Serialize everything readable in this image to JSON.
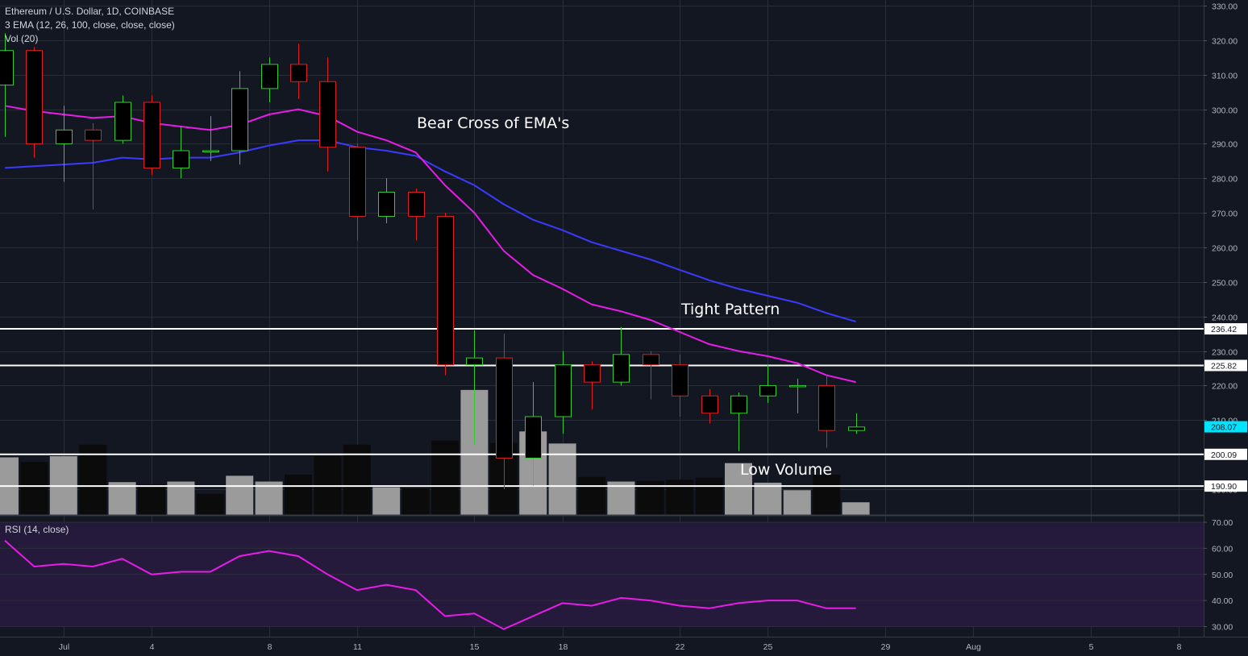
{
  "legend": {
    "title": "Ethereum / U.S. Dollar, 1D, COINBASE",
    "ema": "3 EMA (12, 26, 100, close, close, close)",
    "vol": "Vol (20)",
    "rsi": "RSI (14, close)"
  },
  "annotations": {
    "bear_cross": "Bear Cross of EMA's",
    "tight_pattern": "Tight Pattern",
    "low_volume": "Low Volume"
  },
  "colors": {
    "background": "#131722",
    "grid": "#2a2e39",
    "up": "#33cc33",
    "down": "#e02020",
    "body": "#000000",
    "ema_fast": "#e81ce8",
    "ema_slow": "#3b3bff",
    "volume": "#9b9b9b",
    "volume_dark": "#0b0b0b",
    "rsi_line": "#e81ce8",
    "rsi_band": "#261a3c",
    "rsi_upper": "#c01010",
    "rsi_lower": "#1ed01e",
    "level_line": "#ffffff",
    "price_label": "#00e5ff"
  },
  "chart_data": {
    "type": "candlestick",
    "symbol": "Ethereum / U.S. Dollar, 1D, COINBASE",
    "y_ticks": [
      "330.00",
      "320.00",
      "310.00",
      "300.00",
      "290.00",
      "280.00",
      "270.00",
      "260.00",
      "250.00",
      "240.00",
      "230.00",
      "220.00",
      "210.00",
      "200.00",
      "190.00"
    ],
    "ylim": [
      185,
      332
    ],
    "x_labels": [
      "Jul",
      "4",
      "8",
      "11",
      "15",
      "18",
      "22",
      "25",
      "29",
      "Aug",
      "5",
      "8"
    ],
    "candles": [
      {
        "date": "Jun 29",
        "open": 307,
        "high": 322,
        "low": 292,
        "close": 317
      },
      {
        "date": "Jun 30",
        "open": 317,
        "high": 318,
        "low": 286,
        "close": 290
      },
      {
        "date": "Jul 1",
        "open": 290,
        "high": 301,
        "low": 279,
        "close": 294
      },
      {
        "date": "Jul 2",
        "open": 294,
        "high": 296,
        "low": 271,
        "close": 291
      },
      {
        "date": "Jul 3",
        "open": 291,
        "high": 304,
        "low": 290,
        "close": 302
      },
      {
        "date": "Jul 4",
        "open": 302,
        "high": 304,
        "low": 281,
        "close": 283
      },
      {
        "date": "Jul 5",
        "open": 283,
        "high": 295,
        "low": 280,
        "close": 288
      },
      {
        "date": "Jul 6",
        "open": 288,
        "high": 298,
        "low": 285,
        "close": 288
      },
      {
        "date": "Jul 7",
        "open": 288,
        "high": 311,
        "low": 284,
        "close": 306
      },
      {
        "date": "Jul 8",
        "open": 306,
        "high": 315,
        "low": 302,
        "close": 313
      },
      {
        "date": "Jul 9",
        "open": 313,
        "high": 319,
        "low": 303,
        "close": 308
      },
      {
        "date": "Jul 10",
        "open": 308,
        "high": 315,
        "low": 282,
        "close": 289
      },
      {
        "date": "Jul 11",
        "open": 289,
        "high": 290,
        "low": 262,
        "close": 269
      },
      {
        "date": "Jul 12",
        "open": 269,
        "high": 280,
        "low": 267,
        "close": 276
      },
      {
        "date": "Jul 13",
        "open": 276,
        "high": 277,
        "low": 262,
        "close": 269
      },
      {
        "date": "Jul 14",
        "open": 269,
        "high": 270,
        "low": 223,
        "close": 226
      },
      {
        "date": "Jul 15",
        "open": 226,
        "high": 236,
        "low": 203,
        "close": 228
      },
      {
        "date": "Jul 16",
        "open": 228,
        "high": 235,
        "low": 190,
        "close": 199
      },
      {
        "date": "Jul 17",
        "open": 199,
        "high": 221,
        "low": 191,
        "close": 211
      },
      {
        "date": "Jul 18",
        "open": 211,
        "high": 230,
        "low": 206,
        "close": 226
      },
      {
        "date": "Jul 19",
        "open": 226,
        "high": 227,
        "low": 213,
        "close": 221
      },
      {
        "date": "Jul 20",
        "open": 221,
        "high": 237,
        "low": 220,
        "close": 229
      },
      {
        "date": "Jul 21",
        "open": 229,
        "high": 230,
        "low": 216,
        "close": 226
      },
      {
        "date": "Jul 22",
        "open": 226,
        "high": 229,
        "low": 211,
        "close": 217
      },
      {
        "date": "Jul 23",
        "open": 217,
        "high": 219,
        "low": 209,
        "close": 212
      },
      {
        "date": "Jul 24",
        "open": 212,
        "high": 218,
        "low": 201,
        "close": 217
      },
      {
        "date": "Jul 25",
        "open": 217,
        "high": 226,
        "low": 215,
        "close": 220
      },
      {
        "date": "Jul 26",
        "open": 220,
        "high": 222,
        "low": 212,
        "close": 220
      },
      {
        "date": "Jul 27",
        "open": 220,
        "high": 223,
        "low": 202,
        "close": 207
      },
      {
        "date": "Jul 28",
        "open": 207,
        "high": 212,
        "low": 206,
        "close": 208
      }
    ],
    "volume": [
      {
        "v": 100,
        "up": true
      },
      {
        "v": 92,
        "up": false
      },
      {
        "v": 102,
        "up": true
      },
      {
        "v": 122,
        "up": false
      },
      {
        "v": 57,
        "up": true
      },
      {
        "v": 53,
        "up": false
      },
      {
        "v": 58,
        "up": true
      },
      {
        "v": 37,
        "up": false
      },
      {
        "v": 68,
        "up": true
      },
      {
        "v": 58,
        "up": true
      },
      {
        "v": 70,
        "up": false
      },
      {
        "v": 102,
        "up": false
      },
      {
        "v": 122,
        "up": false
      },
      {
        "v": 48,
        "up": true
      },
      {
        "v": 46,
        "up": false
      },
      {
        "v": 129,
        "up": false
      },
      {
        "v": 217,
        "up": true
      },
      {
        "v": 125,
        "up": false
      },
      {
        "v": 145,
        "up": true
      },
      {
        "v": 124,
        "up": true
      },
      {
        "v": 66,
        "up": false
      },
      {
        "v": 58,
        "up": true
      },
      {
        "v": 59,
        "up": false
      },
      {
        "v": 61,
        "up": false
      },
      {
        "v": 65,
        "up": false
      },
      {
        "v": 90,
        "up": true
      },
      {
        "v": 56,
        "up": true
      },
      {
        "v": 43,
        "up": true
      },
      {
        "v": 70,
        "up": false
      },
      {
        "v": 22,
        "up": true
      }
    ],
    "ema_fast": [
      301,
      299.5,
      298.5,
      297.5,
      298,
      296,
      295,
      294,
      295.5,
      298.5,
      300,
      298,
      293.5,
      291,
      287.5,
      278,
      270,
      259,
      252,
      248,
      243.5,
      241.5,
      239,
      235.5,
      232,
      230,
      228.5,
      226.5,
      223,
      221
    ],
    "ema_slow": [
      283,
      283.5,
      284,
      284.5,
      286,
      285.5,
      286,
      286,
      287.5,
      289.5,
      291,
      291,
      289,
      288,
      286.5,
      282,
      278,
      272.5,
      268,
      265,
      261.5,
      259,
      256.5,
      253.5,
      250.5,
      248,
      246,
      244,
      241,
      238.5
    ],
    "levels": [
      {
        "value": 236.42,
        "label": "236.42"
      },
      {
        "value": 225.82,
        "label": "225.82"
      },
      {
        "value": 200.09,
        "label": "200.09"
      },
      {
        "value": 190.9,
        "label": "190.90"
      }
    ],
    "last_price": {
      "value": 208.07,
      "label": "208.07"
    },
    "rsi": {
      "values": [
        63,
        53,
        54,
        53,
        56,
        50,
        51,
        51,
        57,
        59,
        57,
        50,
        44,
        46,
        44,
        34,
        35,
        29,
        34,
        39,
        38,
        41,
        40,
        38,
        37,
        39,
        40,
        40,
        37,
        37
      ],
      "ylim": [
        28,
        72
      ],
      "y_ticks": [
        "70.00",
        "60.00",
        "50.00",
        "40.00",
        "30.00"
      ],
      "upper": 70,
      "lower": 30
    }
  }
}
